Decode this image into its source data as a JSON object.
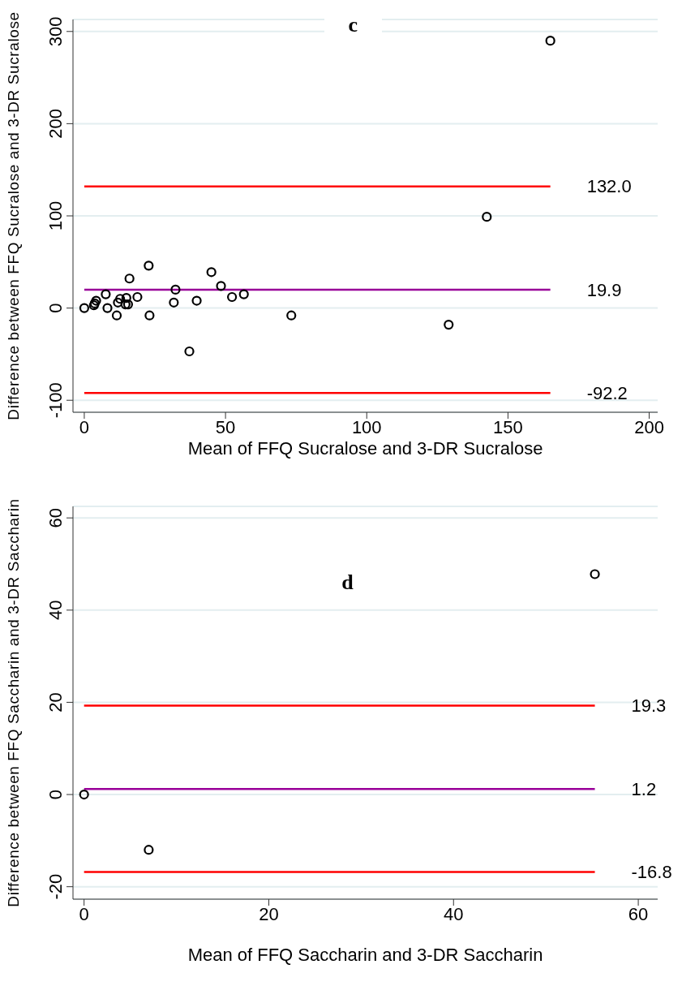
{
  "chart_data": [
    {
      "type": "scatter",
      "title": "c",
      "xlabel": "Mean of FFQ Sucralose and 3-DR Sucralose",
      "ylabel": "Difference between FFQ Sucralose and 3-DR Sucralose",
      "color": "#000000",
      "marker": "circle",
      "grid": "y",
      "x": [
        0,
        3.4,
        3.7,
        4.2,
        7.6,
        8.2,
        11.5,
        11.9,
        12.7,
        14.9,
        14.6,
        15.5,
        16,
        18.8,
        22.8,
        23.1,
        31.7,
        32.3,
        37.2,
        39.8,
        45,
        48.4,
        52.3,
        56.5,
        73.3,
        129,
        142.5,
        165
      ],
      "values": [
        0,
        3,
        5,
        8,
        15,
        0,
        -8,
        6,
        10,
        11,
        4,
        4,
        32,
        12,
        46,
        -8,
        6,
        20,
        -47,
        8,
        39,
        24,
        12,
        15,
        -8,
        -18,
        99,
        290
      ],
      "xlim": [
        -4,
        203
      ],
      "ylim": [
        -113,
        313
      ],
      "xticks": [
        0,
        50,
        100,
        150,
        200
      ],
      "yticks": [
        -100,
        0,
        100,
        200,
        300
      ],
      "ref_lines": [
        {
          "axis": "y",
          "value": 132.0,
          "label": "132.0",
          "color": "#ff0000"
        },
        {
          "axis": "y",
          "value": 19.9,
          "label": "19.9",
          "color": "#990099"
        },
        {
          "axis": "y",
          "value": -92.2,
          "label": "-92.2",
          "color": "#ff0000"
        }
      ]
    },
    {
      "type": "scatter",
      "title": "d",
      "xlabel": "Mean of FFQ Saccharin and 3-DR Saccharin",
      "ylabel": "Difference between FFQ Saccharin and 3-DR Saccharin",
      "color": "#000000",
      "marker": "circle",
      "grid": "y",
      "x": [
        0,
        7,
        55.3
      ],
      "values": [
        0,
        -12,
        47.8
      ],
      "xlim": [
        -1.2,
        62.1
      ],
      "ylim": [
        -22.7,
        62.5
      ],
      "xticks": [
        0,
        20,
        40,
        60
      ],
      "yticks": [
        -20,
        0,
        20,
        40,
        60
      ],
      "ref_lines": [
        {
          "axis": "y",
          "value": 19.3,
          "label": "19.3",
          "color": "#ff0000"
        },
        {
          "axis": "y",
          "value": 1.2,
          "label": "1.2",
          "color": "#990099"
        },
        {
          "axis": "y",
          "value": -16.8,
          "label": "-16.8",
          "color": "#ff0000"
        }
      ]
    }
  ]
}
